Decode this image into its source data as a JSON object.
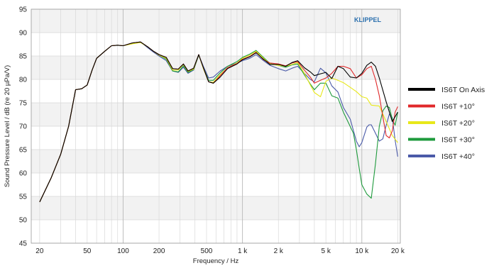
{
  "chart_data": {
    "type": "line",
    "xlabel": "Frequency / Hz",
    "ylabel": "Sound Pressure Level / dB (re 20 µPa/V)",
    "brand": "KLIPPEL",
    "x_scale": "log",
    "xlim": [
      17,
      21000
    ],
    "ylim": [
      45,
      95
    ],
    "y_ticks": [
      45,
      50,
      55,
      60,
      65,
      70,
      75,
      80,
      85,
      90,
      95
    ],
    "x_ticks": [
      {
        "value": 20,
        "label": "20"
      },
      {
        "value": 50,
        "label": "50"
      },
      {
        "value": 100,
        "label": "100"
      },
      {
        "value": 200,
        "label": "200"
      },
      {
        "value": 500,
        "label": "500"
      },
      {
        "value": 1000,
        "label": "1 k"
      },
      {
        "value": 2000,
        "label": "2 k"
      },
      {
        "value": 5000,
        "label": "5 k"
      },
      {
        "value": 10000,
        "label": "10 k"
      },
      {
        "value": 20000,
        "label": "20 k"
      }
    ],
    "grid": true,
    "legend_position": "right",
    "series": [
      {
        "name": "IS6T On Axis",
        "color": "#000000",
        "points": [
          [
            20,
            53.8
          ],
          [
            25,
            59
          ],
          [
            30,
            64
          ],
          [
            35,
            70
          ],
          [
            40,
            77.8
          ],
          [
            45,
            78
          ],
          [
            50,
            78.8
          ],
          [
            55,
            82
          ],
          [
            60,
            84.5
          ],
          [
            70,
            86
          ],
          [
            80,
            87.2
          ],
          [
            90,
            87.3
          ],
          [
            100,
            87.2
          ],
          [
            120,
            87.8
          ],
          [
            140,
            88
          ],
          [
            160,
            87
          ],
          [
            180,
            86
          ],
          [
            200,
            85.3
          ],
          [
            230,
            84.7
          ],
          [
            260,
            82.3
          ],
          [
            290,
            82.2
          ],
          [
            320,
            83.3
          ],
          [
            350,
            81.8
          ],
          [
            390,
            82.4
          ],
          [
            430,
            85.3
          ],
          [
            470,
            82.5
          ],
          [
            520,
            79.5
          ],
          [
            570,
            79.2
          ],
          [
            650,
            80.5
          ],
          [
            750,
            82.3
          ],
          [
            900,
            83.3
          ],
          [
            1000,
            84.2
          ],
          [
            1150,
            84.8
          ],
          [
            1300,
            85.7
          ],
          [
            1500,
            84.3
          ],
          [
            1700,
            83.2
          ],
          [
            2000,
            83.2
          ],
          [
            2300,
            82.8
          ],
          [
            2600,
            83.6
          ],
          [
            2900,
            84
          ],
          [
            3300,
            82.5
          ],
          [
            3700,
            81.6
          ],
          [
            4000,
            80.8
          ],
          [
            4500,
            81.2
          ],
          [
            5000,
            81.5
          ],
          [
            5600,
            80.2
          ],
          [
            6300,
            82.8
          ],
          [
            7000,
            82.3
          ],
          [
            8000,
            80.5
          ],
          [
            9000,
            80.3
          ],
          [
            10000,
            81.3
          ],
          [
            11000,
            83
          ],
          [
            12000,
            83.7
          ],
          [
            13000,
            82.8
          ],
          [
            14000,
            80.3
          ],
          [
            16000,
            75.2
          ],
          [
            18000,
            71
          ],
          [
            20000,
            73
          ]
        ]
      },
      {
        "name": "IS6T +10°",
        "color": "#e0282a",
        "points": [
          [
            20,
            53.8
          ],
          [
            25,
            59
          ],
          [
            30,
            64
          ],
          [
            35,
            70
          ],
          [
            40,
            77.8
          ],
          [
            45,
            78
          ],
          [
            50,
            78.8
          ],
          [
            55,
            82
          ],
          [
            60,
            84.5
          ],
          [
            70,
            86
          ],
          [
            80,
            87.2
          ],
          [
            90,
            87.3
          ],
          [
            100,
            87.2
          ],
          [
            120,
            87.8
          ],
          [
            140,
            88
          ],
          [
            160,
            87
          ],
          [
            180,
            86
          ],
          [
            200,
            85.3
          ],
          [
            230,
            84.7
          ],
          [
            260,
            82.3
          ],
          [
            290,
            82.2
          ],
          [
            320,
            83.3
          ],
          [
            350,
            81.8
          ],
          [
            390,
            82.4
          ],
          [
            430,
            85.3
          ],
          [
            470,
            82.5
          ],
          [
            520,
            79.5
          ],
          [
            570,
            79.2
          ],
          [
            650,
            80.8
          ],
          [
            750,
            82.5
          ],
          [
            900,
            83.4
          ],
          [
            1000,
            84.3
          ],
          [
            1150,
            84.9
          ],
          [
            1300,
            85.8
          ],
          [
            1500,
            84.2
          ],
          [
            1700,
            83.5
          ],
          [
            2000,
            83.3
          ],
          [
            2300,
            82.9
          ],
          [
            2600,
            83.5
          ],
          [
            2900,
            83.8
          ],
          [
            3300,
            82
          ],
          [
            3700,
            80.5
          ],
          [
            4000,
            79.2
          ],
          [
            4500,
            79.8
          ],
          [
            5000,
            80.3
          ],
          [
            5600,
            81.3
          ],
          [
            6300,
            82.8
          ],
          [
            7000,
            82.8
          ],
          [
            8000,
            82.3
          ],
          [
            9000,
            80.3
          ],
          [
            10000,
            81
          ],
          [
            11000,
            82.3
          ],
          [
            12000,
            82.8
          ],
          [
            13000,
            80
          ],
          [
            14000,
            76.5
          ],
          [
            15000,
            72
          ],
          [
            16000,
            68
          ],
          [
            17000,
            67.5
          ],
          [
            18000,
            69
          ],
          [
            19000,
            73
          ],
          [
            20000,
            74.2
          ]
        ]
      },
      {
        "name": "IS6T +20°",
        "color": "#e8e81a",
        "points": [
          [
            20,
            53.8
          ],
          [
            25,
            59
          ],
          [
            30,
            64
          ],
          [
            35,
            70
          ],
          [
            40,
            77.8
          ],
          [
            45,
            78
          ],
          [
            50,
            78.8
          ],
          [
            55,
            82
          ],
          [
            60,
            84.5
          ],
          [
            70,
            86
          ],
          [
            80,
            87.2
          ],
          [
            90,
            87.3
          ],
          [
            100,
            87.2
          ],
          [
            120,
            87.6
          ],
          [
            140,
            87.9
          ],
          [
            160,
            87
          ],
          [
            180,
            86
          ],
          [
            200,
            85.2
          ],
          [
            230,
            84.5
          ],
          [
            260,
            82
          ],
          [
            290,
            82
          ],
          [
            320,
            83.2
          ],
          [
            350,
            81.7
          ],
          [
            390,
            82.2
          ],
          [
            430,
            85.3
          ],
          [
            470,
            82.3
          ],
          [
            520,
            79.5
          ],
          [
            570,
            79.4
          ],
          [
            650,
            81
          ],
          [
            750,
            82.5
          ],
          [
            900,
            83.5
          ],
          [
            1000,
            84.5
          ],
          [
            1150,
            85.2
          ],
          [
            1300,
            86
          ],
          [
            1500,
            84.5
          ],
          [
            1700,
            83.3
          ],
          [
            2000,
            83
          ],
          [
            2300,
            82.8
          ],
          [
            2600,
            83.2
          ],
          [
            2900,
            83.6
          ],
          [
            3300,
            81.3
          ],
          [
            3700,
            78.8
          ],
          [
            4000,
            77.2
          ],
          [
            4500,
            76.3
          ],
          [
            5000,
            79.6
          ],
          [
            5600,
            80.3
          ],
          [
            6300,
            79.8
          ],
          [
            7000,
            79.3
          ],
          [
            8000,
            78.3
          ],
          [
            9000,
            77.4
          ],
          [
            10000,
            76.3
          ],
          [
            11000,
            76
          ],
          [
            12000,
            74.5
          ],
          [
            14000,
            74.3
          ],
          [
            16000,
            71
          ],
          [
            18000,
            68
          ],
          [
            20000,
            66.5
          ]
        ]
      },
      {
        "name": "IS6T +30°",
        "color": "#1e9a3c",
        "points": [
          [
            20,
            53.8
          ],
          [
            25,
            59
          ],
          [
            30,
            64
          ],
          [
            35,
            70
          ],
          [
            40,
            77.8
          ],
          [
            45,
            78
          ],
          [
            50,
            78.8
          ],
          [
            55,
            82
          ],
          [
            60,
            84.5
          ],
          [
            70,
            86
          ],
          [
            80,
            87.2
          ],
          [
            90,
            87.3
          ],
          [
            100,
            87.2
          ],
          [
            120,
            87.7
          ],
          [
            140,
            87.9
          ],
          [
            160,
            87
          ],
          [
            180,
            86
          ],
          [
            200,
            85.2
          ],
          [
            230,
            84.3
          ],
          [
            260,
            81.8
          ],
          [
            290,
            81.6
          ],
          [
            320,
            82.9
          ],
          [
            350,
            81.5
          ],
          [
            390,
            82.1
          ],
          [
            430,
            85.2
          ],
          [
            470,
            82.5
          ],
          [
            520,
            79.8
          ],
          [
            570,
            79.8
          ],
          [
            650,
            81.4
          ],
          [
            750,
            82.8
          ],
          [
            900,
            83.8
          ],
          [
            1000,
            84.7
          ],
          [
            1150,
            85.4
          ],
          [
            1300,
            86.2
          ],
          [
            1500,
            84.7
          ],
          [
            1700,
            83.4
          ],
          [
            2000,
            83
          ],
          [
            2300,
            82.6
          ],
          [
            2600,
            83.1
          ],
          [
            2900,
            83.3
          ],
          [
            3300,
            81
          ],
          [
            3700,
            79
          ],
          [
            4000,
            77.8
          ],
          [
            4500,
            79.2
          ],
          [
            5000,
            79.2
          ],
          [
            5600,
            76.5
          ],
          [
            6300,
            76
          ],
          [
            7000,
            73
          ],
          [
            7800,
            70.5
          ],
          [
            8500,
            68.5
          ],
          [
            9000,
            65
          ],
          [
            9500,
            61
          ],
          [
            10000,
            57.5
          ],
          [
            11000,
            55.5
          ],
          [
            12000,
            54.6
          ],
          [
            13000,
            62
          ],
          [
            14000,
            70
          ],
          [
            15000,
            73.3
          ],
          [
            16000,
            74.3
          ],
          [
            17000,
            74
          ],
          [
            18000,
            71.5
          ],
          [
            19000,
            70.2
          ],
          [
            20000,
            73
          ]
        ]
      },
      {
        "name": "IS6T +40°",
        "color": "#4a5aa8",
        "points": [
          [
            20,
            53.8
          ],
          [
            25,
            59
          ],
          [
            30,
            64
          ],
          [
            35,
            70
          ],
          [
            40,
            77.8
          ],
          [
            45,
            78
          ],
          [
            50,
            78.8
          ],
          [
            55,
            82
          ],
          [
            60,
            84.5
          ],
          [
            70,
            86
          ],
          [
            80,
            87.2
          ],
          [
            90,
            87.3
          ],
          [
            100,
            87.2
          ],
          [
            120,
            87.8
          ],
          [
            140,
            88
          ],
          [
            160,
            86.8
          ],
          [
            180,
            85.8
          ],
          [
            200,
            85
          ],
          [
            230,
            84
          ],
          [
            260,
            81.8
          ],
          [
            290,
            81.5
          ],
          [
            320,
            82.6
          ],
          [
            350,
            81.3
          ],
          [
            390,
            82
          ],
          [
            430,
            85.2
          ],
          [
            470,
            82.8
          ],
          [
            520,
            80.3
          ],
          [
            570,
            80.5
          ],
          [
            650,
            81.8
          ],
          [
            750,
            82.8
          ],
          [
            900,
            83.5
          ],
          [
            1000,
            84
          ],
          [
            1150,
            84.5
          ],
          [
            1300,
            85.3
          ],
          [
            1500,
            84
          ],
          [
            1700,
            83
          ],
          [
            2000,
            82.3
          ],
          [
            2300,
            81.8
          ],
          [
            2600,
            82.4
          ],
          [
            2900,
            82.8
          ],
          [
            3300,
            81.3
          ],
          [
            3700,
            80
          ],
          [
            4000,
            79.5
          ],
          [
            4500,
            82.4
          ],
          [
            5000,
            81.4
          ],
          [
            5600,
            78.6
          ],
          [
            6300,
            77.3
          ],
          [
            7000,
            74
          ],
          [
            8000,
            71.5
          ],
          [
            9000,
            66.8
          ],
          [
            9500,
            65.6
          ],
          [
            10000,
            66.5
          ],
          [
            11000,
            69.8
          ],
          [
            11500,
            70.3
          ],
          [
            12000,
            70.3
          ],
          [
            13000,
            68.5
          ],
          [
            14000,
            66.8
          ],
          [
            15000,
            67.3
          ],
          [
            16000,
            70.2
          ],
          [
            17000,
            72.6
          ],
          [
            18000,
            71.8
          ],
          [
            19000,
            67
          ],
          [
            20000,
            63.5
          ]
        ]
      }
    ]
  }
}
